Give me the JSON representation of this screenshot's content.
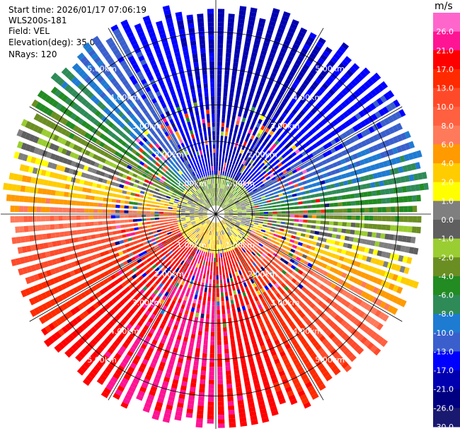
{
  "header": {
    "start_time": "Start time: 2026/01/17 07:06:19",
    "instrument": "WLS200s-181",
    "field": "Field: VEL",
    "elevation": "Elevation(deg): 35.00",
    "nrays": "NRays: 120"
  },
  "chart_data": {
    "type": "ppi-polar",
    "field": "VEL",
    "units": "m/s",
    "elevation_deg": 35.0,
    "n_rays": 120,
    "range_rings_km": [
      1,
      2,
      3,
      4,
      5
    ],
    "ring_labels": [
      "1.00km",
      "2.00km",
      "3.00km",
      "4.00km",
      "5.00km"
    ],
    "max_range_km": 5.9,
    "azimuth_spokes_deg": [
      0,
      30,
      60,
      90,
      120,
      150,
      180,
      210,
      240,
      270,
      300,
      330
    ],
    "velocity_pattern": {
      "toward_sensor_azimuth_deg": 15,
      "away_from_sensor_azimuth_deg": 195,
      "peak_abs_ms": 20.0,
      "note_offset_ms": 1.5
    },
    "colorbar": {
      "unit": "m/s",
      "ticks": [
        "26.0",
        "21.0",
        "17.0",
        "13.0",
        "10.0",
        "8.0",
        "6.0",
        "4.0",
        "2.0",
        "1.0",
        "0.0",
        "-1.0",
        "-2.0",
        "-4.0",
        "-6.0",
        "-8.0",
        "-10.0",
        "-13.0",
        "-17.0",
        "-21.0",
        "-26.0",
        "-30.0"
      ],
      "bounds": [
        30,
        26,
        21,
        17,
        13,
        10,
        8,
        6,
        4,
        2,
        1,
        0,
        -1,
        -2,
        -4,
        -6,
        -8,
        -10,
        -13,
        -17,
        -21,
        -26,
        -30
      ],
      "colors": [
        "#ff66cc",
        "#ff1493",
        "#ff0000",
        "#ff2a00",
        "#ff4a2a",
        "#ff6040",
        "#ff7a5a",
        "#ff9a00",
        "#ffcc00",
        "#ffff00",
        "#7f7f7f",
        "#5f5f5f",
        "#9acd32",
        "#6b8e23",
        "#228b22",
        "#2e8b57",
        "#1e7bd2",
        "#3a5fcd",
        "#0000ff",
        "#0000b0",
        "#000080",
        "#191970"
      ]
    }
  }
}
